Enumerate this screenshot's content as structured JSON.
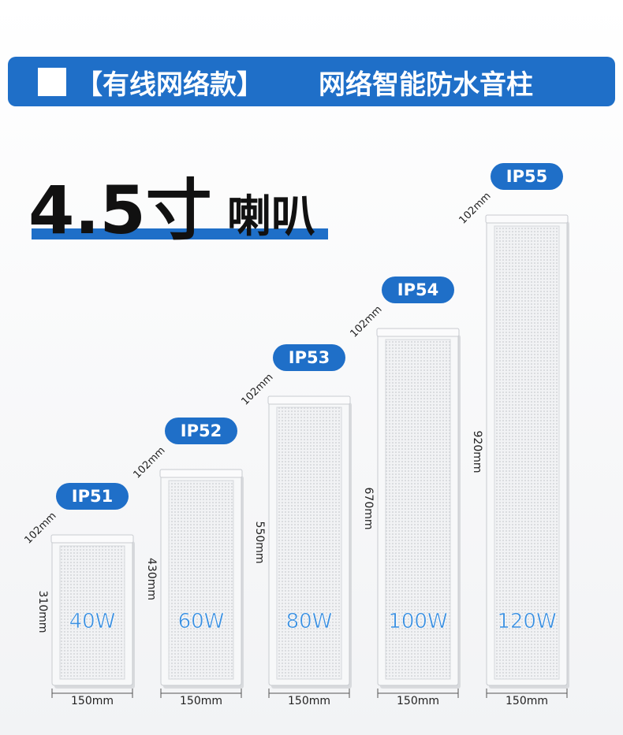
{
  "header": {
    "title": "【有线网络款】",
    "subtitle": "网络智能防水音柱"
  },
  "headline": {
    "size": "4.5寸",
    "word": "喇叭"
  },
  "products": [
    {
      "rating": "IP51",
      "power": "40W",
      "height": "310mm",
      "depth": "102mm",
      "width": "150mm"
    },
    {
      "rating": "IP52",
      "power": "60W",
      "height": "430mm",
      "depth": "102mm",
      "width": "150mm"
    },
    {
      "rating": "IP53",
      "power": "80W",
      "height": "550mm",
      "depth": "102mm",
      "width": "150mm"
    },
    {
      "rating": "IP54",
      "power": "100W",
      "height": "670mm",
      "depth": "102mm",
      "width": "150mm"
    },
    {
      "rating": "IP55",
      "power": "120W",
      "height": "920mm",
      "depth": "102mm",
      "width": "150mm"
    }
  ]
}
